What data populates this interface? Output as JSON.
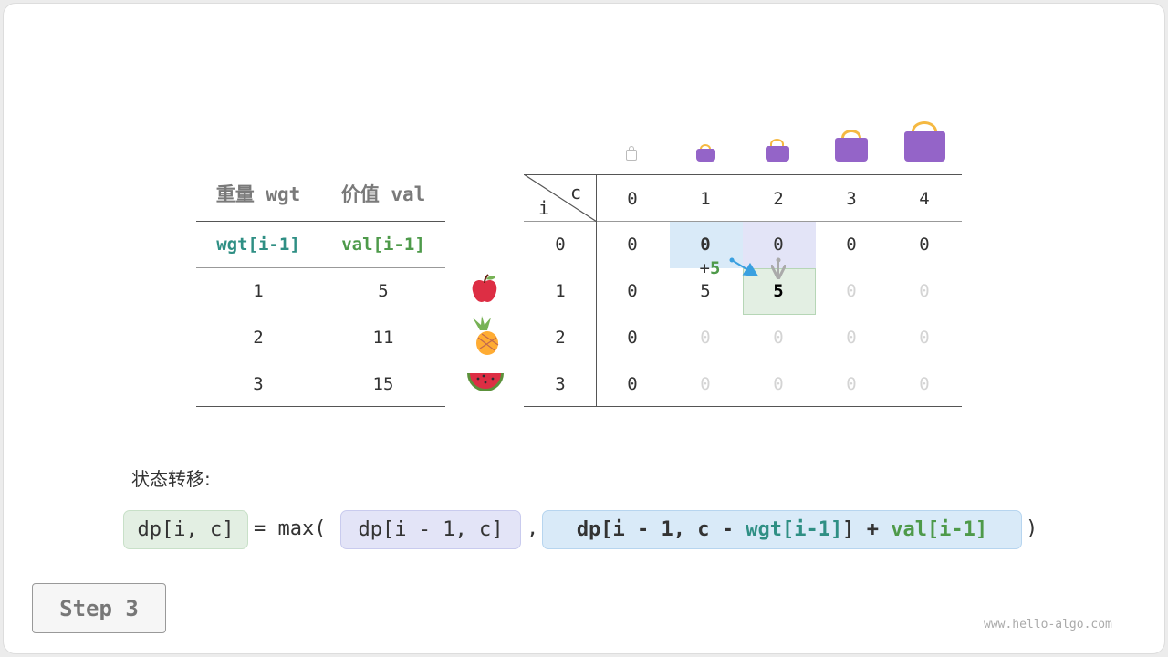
{
  "items_table": {
    "headers": [
      "重量 wgt",
      "价值 val"
    ],
    "subheaders": [
      "wgt[i-1]",
      "val[i-1]"
    ],
    "rows": [
      [
        "1",
        "5"
      ],
      [
        "2",
        "11"
      ],
      [
        "3",
        "15"
      ]
    ],
    "item_icons": [
      "apple-icon",
      "pineapple-icon",
      "watermelon-icon"
    ]
  },
  "dp_table": {
    "corner_row_label": "i",
    "corner_col_label": "c",
    "columns": [
      "0",
      "1",
      "2",
      "3",
      "4"
    ],
    "row_labels": [
      "0",
      "1",
      "2",
      "3"
    ],
    "cells": [
      [
        "0",
        "0",
        "0",
        "0",
        "0"
      ],
      [
        "0",
        "5",
        "5",
        "0",
        "0"
      ],
      [
        "0",
        "0",
        "0",
        "0",
        "0"
      ],
      [
        "0",
        "0",
        "0",
        "0",
        "0"
      ]
    ],
    "computed": [
      [
        true,
        true,
        true,
        true,
        true
      ],
      [
        true,
        true,
        true,
        false,
        false
      ],
      [
        true,
        false,
        false,
        false,
        false
      ],
      [
        true,
        false,
        false,
        false,
        false
      ]
    ],
    "bag_icons": [
      "empty-bag-icon",
      "bag-size-1-icon",
      "bag-size-2-icon",
      "bag-size-3-icon",
      "bag-size-4-icon"
    ],
    "annotation_plus": "+",
    "annotation_value": "5"
  },
  "transition": {
    "label": "状态转移:",
    "lhs": "dp[i, c]",
    "eq": "= max(",
    "option1": "dp[i - 1, c]",
    "comma": ",",
    "option2_prefix": "dp[i - 1, c - ",
    "option2_wgt": "wgt[i-1]",
    "option2_mid": "] + ",
    "option2_val": "val[i-1]",
    "close": ")"
  },
  "step_label": "Step 3",
  "watermark": "www.hello-algo.com",
  "colors": {
    "highlight_blue": "#d9eaf8",
    "highlight_purple": "#e3e4f7",
    "highlight_green": "#e3efe3",
    "wgt": "#2f8f84",
    "val": "#4e9a4a",
    "bag": "#9464c8"
  }
}
